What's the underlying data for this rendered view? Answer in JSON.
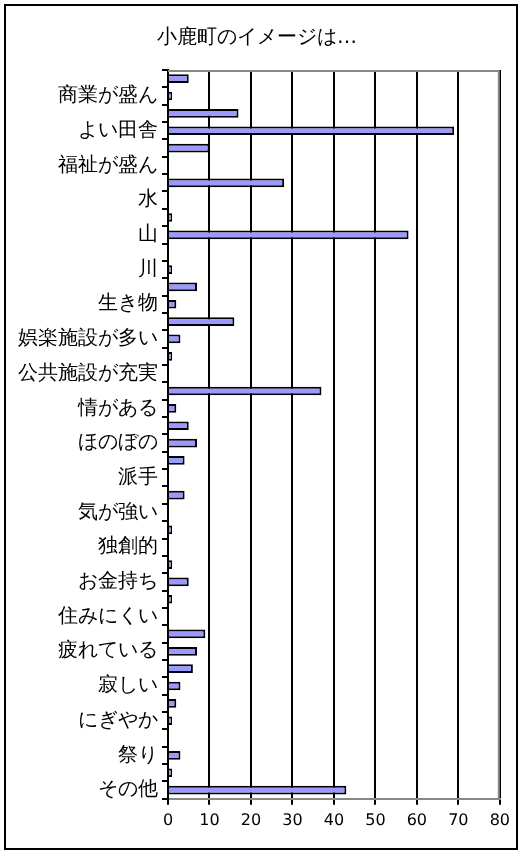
{
  "chart_data": {
    "type": "bar",
    "orientation": "horizontal",
    "title": "小鹿町のイメージは…",
    "categories": [
      null,
      "商業が盛ん",
      null,
      "よい田舎",
      null,
      "福祉が盛ん",
      null,
      "水",
      null,
      "山",
      null,
      "川",
      null,
      "生き物",
      null,
      "娯楽施設が多い",
      null,
      "公共施設が充実",
      null,
      "情がある",
      null,
      "ほのぼの",
      null,
      "派手",
      null,
      "気が強い",
      null,
      "独創的",
      null,
      "お金持ち",
      null,
      "住みにくい",
      null,
      "疲れている",
      null,
      "寂しい",
      null,
      "にぎやか",
      null,
      "祭り",
      null,
      "その他"
    ],
    "values": [
      5,
      1,
      17,
      69,
      10,
      0,
      28,
      0,
      1,
      58,
      0,
      1,
      7,
      2,
      16,
      3,
      1,
      0,
      37,
      2,
      5,
      7,
      4,
      0,
      4,
      0,
      1,
      0,
      1,
      5,
      1,
      0,
      9,
      7,
      6,
      3,
      2,
      1,
      0,
      3,
      1,
      43
    ],
    "color": "#9999ff",
    "xlim": [
      0,
      80
    ],
    "xticks": [
      0,
      10,
      20,
      30,
      40,
      50,
      60,
      70,
      80
    ],
    "grid": "x",
    "legend": false
  }
}
